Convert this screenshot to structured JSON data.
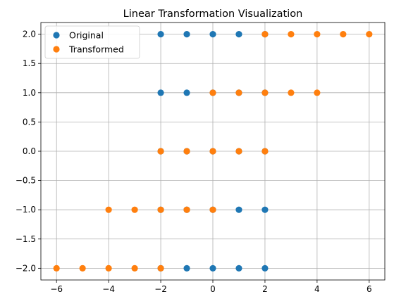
{
  "chart_data": {
    "type": "scatter",
    "title": "Linear Transformation Visualization",
    "xlabel": "",
    "ylabel": "",
    "xlim": [
      -6.6,
      6.6
    ],
    "ylim": [
      -2.2,
      2.2
    ],
    "xticks": [
      -6,
      -4,
      -2,
      0,
      2,
      4,
      6
    ],
    "xtick_labels": [
      "−6",
      "−4",
      "−2",
      "0",
      "2",
      "4",
      "6"
    ],
    "yticks": [
      -2.0,
      -1.5,
      -1.0,
      -0.5,
      0.0,
      0.5,
      1.0,
      1.5,
      2.0
    ],
    "ytick_labels": [
      "−2.0",
      "−1.5",
      "−1.0",
      "−0.5",
      "0.0",
      "0.5",
      "1.0",
      "1.5",
      "2.0"
    ],
    "grid": true,
    "legend_position": "top-left",
    "series": [
      {
        "name": "Original",
        "color": "#1f77b4",
        "points": [
          [
            -2,
            -2
          ],
          [
            -1,
            -2
          ],
          [
            0,
            -2
          ],
          [
            1,
            -2
          ],
          [
            2,
            -2
          ],
          [
            -2,
            -1
          ],
          [
            -1,
            -1
          ],
          [
            0,
            -1
          ],
          [
            1,
            -1
          ],
          [
            2,
            -1
          ],
          [
            -2,
            0
          ],
          [
            -1,
            0
          ],
          [
            0,
            0
          ],
          [
            1,
            0
          ],
          [
            2,
            0
          ],
          [
            -2,
            1
          ],
          [
            -1,
            1
          ],
          [
            0,
            1
          ],
          [
            1,
            1
          ],
          [
            2,
            1
          ],
          [
            -2,
            2
          ],
          [
            -1,
            2
          ],
          [
            0,
            2
          ],
          [
            1,
            2
          ],
          [
            2,
            2
          ]
        ]
      },
      {
        "name": "Transformed",
        "color": "#ff7f0e",
        "points": [
          [
            -6,
            -2
          ],
          [
            -5,
            -2
          ],
          [
            -4,
            -2
          ],
          [
            -3,
            -2
          ],
          [
            -2,
            -2
          ],
          [
            -4,
            -1
          ],
          [
            -3,
            -1
          ],
          [
            -2,
            -1
          ],
          [
            -1,
            -1
          ],
          [
            0,
            -1
          ],
          [
            -2,
            0
          ],
          [
            -1,
            0
          ],
          [
            0,
            0
          ],
          [
            1,
            0
          ],
          [
            2,
            0
          ],
          [
            0,
            1
          ],
          [
            1,
            1
          ],
          [
            2,
            1
          ],
          [
            3,
            1
          ],
          [
            4,
            1
          ],
          [
            2,
            2
          ],
          [
            3,
            2
          ],
          [
            4,
            2
          ],
          [
            5,
            2
          ],
          [
            6,
            2
          ]
        ]
      }
    ]
  }
}
